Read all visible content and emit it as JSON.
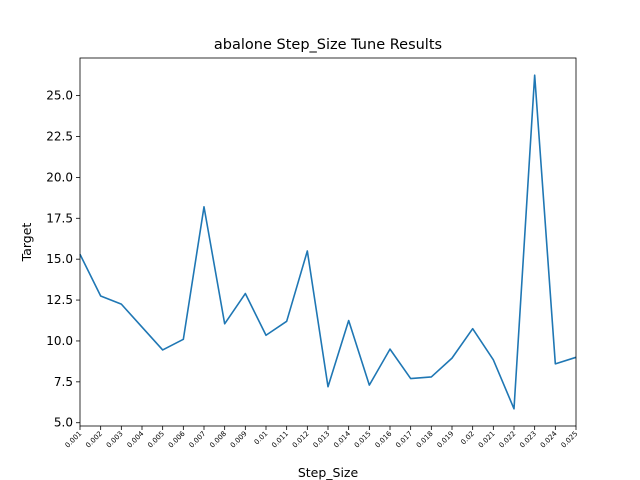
{
  "chart_data": {
    "type": "line",
    "title": "abalone Step_Size Tune Results",
    "xlabel": "Step_Size",
    "ylabel": "Target",
    "categories": [
      "0.001",
      "0.002",
      "0.003",
      "0.004",
      "0.005",
      "0.006",
      "0.007",
      "0.008",
      "0.009",
      "0.01",
      "0.011",
      "0.012",
      "0.013",
      "0.014",
      "0.015",
      "0.016",
      "0.017",
      "0.018",
      "0.019",
      "0.02",
      "0.021",
      "0.022",
      "0.023",
      "0.024",
      "0.025"
    ],
    "series": [
      {
        "values": [
          15.3,
          12.75,
          12.25,
          10.85,
          9.45,
          10.1,
          18.2,
          11.05,
          12.9,
          10.35,
          11.2,
          15.5,
          7.2,
          11.25,
          7.3,
          9.5,
          7.7,
          7.8,
          8.95,
          10.75,
          8.85,
          5.85,
          26.25,
          8.6,
          9.0
        ],
        "color": "#1f77b4"
      }
    ],
    "y_ticks": [
      5.0,
      7.5,
      10.0,
      12.5,
      15.0,
      17.5,
      20.0,
      22.5,
      25.0
    ],
    "ylim": [
      4.8,
      27.3
    ],
    "grid": false
  }
}
